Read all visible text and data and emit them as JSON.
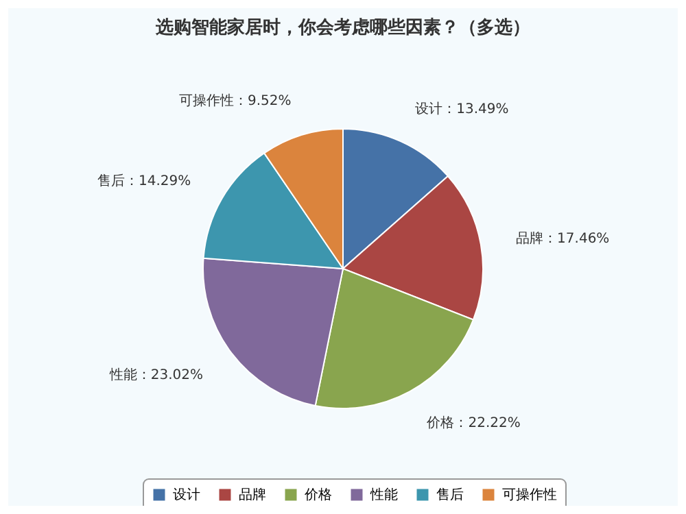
{
  "chart_data": {
    "type": "pie",
    "title": "选购智能家居时，你会考虑哪些因素？（多选）",
    "categories": [
      "设计",
      "品牌",
      "价格",
      "性能",
      "售后",
      "可操作性"
    ],
    "values": [
      13.49,
      17.46,
      22.22,
      23.02,
      14.29,
      9.52
    ],
    "colors": [
      "#4572a7",
      "#aa4643",
      "#89a54e",
      "#80699b",
      "#3d96ae",
      "#db843d"
    ],
    "value_labels": [
      "设计：13.49%",
      "品牌：17.46%",
      "价格：22.22%",
      "性能：23.02%",
      "售后：14.29%",
      "可操作性：9.52%"
    ],
    "legend": "bottom"
  }
}
